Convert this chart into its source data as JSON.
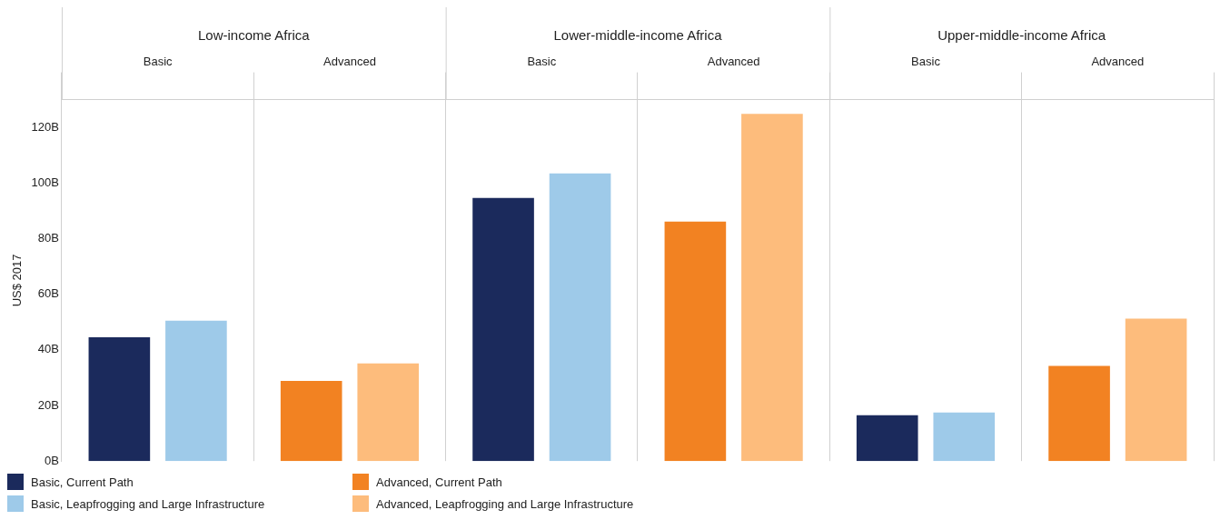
{
  "chart_data": {
    "type": "bar",
    "ylabel": "US$ 2017",
    "categories": [
      "Basic",
      "Advanced",
      "Basic",
      "Advanced",
      "Basic",
      "Advanced"
    ],
    "annotations": [
      "Low-income Africa",
      "Lower-middle-income Africa",
      "Upper-middle-income Africa"
    ],
    "series": [
      {
        "name": "Basic, Current Path",
        "color": "#1b2a5c",
        "values": [
          44.5,
          null,
          94.6,
          null,
          16.5,
          null
        ]
      },
      {
        "name": "Basic, Leapfrogging and Large Infrastructure",
        "color": "#9ecae9",
        "values": [
          50.5,
          null,
          103.5,
          null,
          17.5,
          null
        ]
      },
      {
        "name": "Advanced, Current Path",
        "color": "#f28222",
        "values": [
          null,
          28.8,
          null,
          86.1,
          null,
          34.2
        ]
      },
      {
        "name": "Advanced, Leapfrogging and Large Infrastructure",
        "color": "#fdbc7c",
        "values": [
          null,
          35.1,
          null,
          124.9,
          null,
          51.2
        ]
      }
    ],
    "ylim": [
      0,
      130
    ],
    "yticks": [
      {
        "value": 0,
        "label": "0B"
      },
      {
        "value": 20,
        "label": "20B"
      },
      {
        "value": 40,
        "label": "40B"
      },
      {
        "value": 60,
        "label": "60B"
      },
      {
        "value": 80,
        "label": "80B"
      },
      {
        "value": 100,
        "label": "100B"
      },
      {
        "value": 120,
        "label": "120B"
      }
    ],
    "grid": "x",
    "legend": "bottom"
  }
}
